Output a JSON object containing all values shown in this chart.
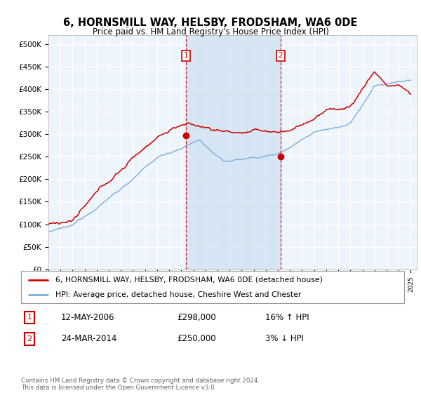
{
  "title": "6, HORNSMILL WAY, HELSBY, FRODSHAM, WA6 0DE",
  "subtitle": "Price paid vs. HM Land Registry's House Price Index (HPI)",
  "ylabel_ticks": [
    "£0",
    "£50K",
    "£100K",
    "£150K",
    "£200K",
    "£250K",
    "£300K",
    "£350K",
    "£400K",
    "£450K",
    "£500K"
  ],
  "ytick_values": [
    0,
    50000,
    100000,
    150000,
    200000,
    250000,
    300000,
    350000,
    400000,
    450000,
    500000
  ],
  "ylim": [
    0,
    520000
  ],
  "sale1": {
    "date_label": "1",
    "date": "12-MAY-2006",
    "price": 298000,
    "hpi_pct": "16%",
    "hpi_dir": "↑",
    "x_year": 2006.37
  },
  "sale2": {
    "date_label": "2",
    "date": "24-MAR-2014",
    "price": 250000,
    "hpi_pct": "3%",
    "hpi_dir": "↓",
    "x_year": 2014.22
  },
  "legend_line1": "6, HORNSMILL WAY, HELSBY, FRODSHAM, WA6 0DE (detached house)",
  "legend_line2": "HPI: Average price, detached house, Cheshire West and Chester",
  "footer": "Contains HM Land Registry data © Crown copyright and database right 2024.\nThis data is licensed under the Open Government Licence v3.0.",
  "hpi_color": "#7aaddc",
  "price_color": "#cc0000",
  "vline_color": "#cc0000",
  "background_color": "#eef4fb",
  "shade_color": "#cce0f0",
  "plot_bg_color": "#eef4fb",
  "xlim_start": 1995,
  "xlim_end": 2025.5
}
